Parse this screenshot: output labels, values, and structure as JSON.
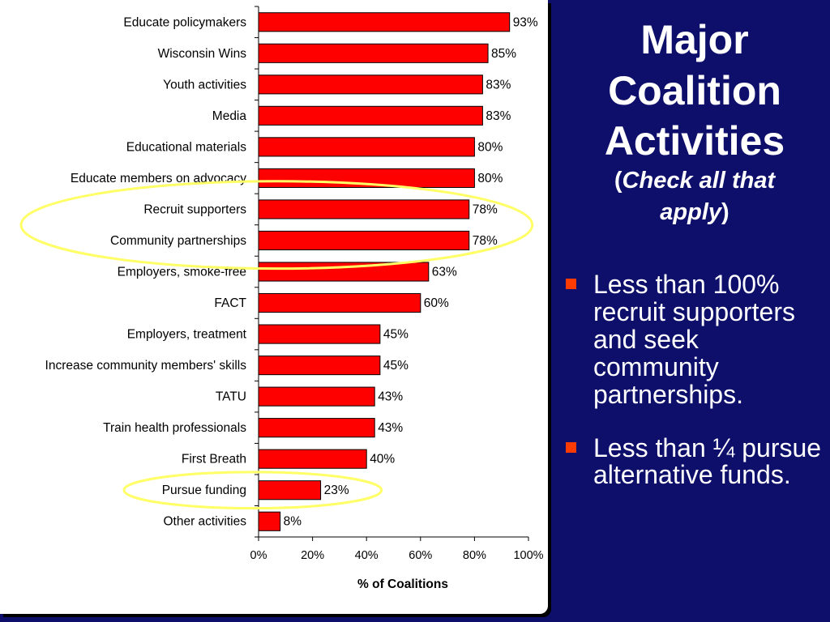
{
  "slide": {
    "title_line1": "Major",
    "title_line2": "Coalition",
    "title_line3": "Activities",
    "subtitle_open": "(",
    "subtitle_italic_1": "Check all that",
    "subtitle_italic_2": "apply",
    "subtitle_close": ")",
    "bullets": [
      "Less than 100% recruit supporters and seek community partnerships.",
      "Less than ¼ pursue alternative funds."
    ],
    "bullet_color": "#ff3b00",
    "background_color": "#0d0f6b"
  },
  "chart_data": {
    "type": "bar",
    "orientation": "horizontal",
    "categories": [
      "Educate policymakers",
      "Wisconsin Wins",
      "Youth activities",
      "Media",
      "Educational materials",
      "Educate members on advocacy",
      "Recruit supporters",
      "Community partnerships",
      "Employers, smoke-free",
      "FACT",
      "Employers, treatment",
      "Increase community members' skills",
      "TATU",
      "Train health professionals",
      "First Breath",
      "Pursue funding",
      "Other activities"
    ],
    "values": [
      93,
      85,
      83,
      83,
      80,
      80,
      78,
      78,
      63,
      60,
      45,
      45,
      43,
      43,
      40,
      23,
      8
    ],
    "value_labels": [
      "93%",
      "85%",
      "83%",
      "83%",
      "80%",
      "80%",
      "78%",
      "78%",
      "63%",
      "60%",
      "45%",
      "45%",
      "43%",
      "43%",
      "40%",
      "23%",
      "8%"
    ],
    "xlabel": "% of Coalitions",
    "xlim": [
      0,
      100
    ],
    "x_ticks": [
      "0%",
      "20%",
      "40%",
      "60%",
      "80%",
      "100%"
    ],
    "bar_color": "#ff0000",
    "highlighted_categories": [
      "Recruit supporters",
      "Community partnerships",
      "Pursue funding"
    ],
    "highlight_color": "#ffff66",
    "grid": false
  }
}
